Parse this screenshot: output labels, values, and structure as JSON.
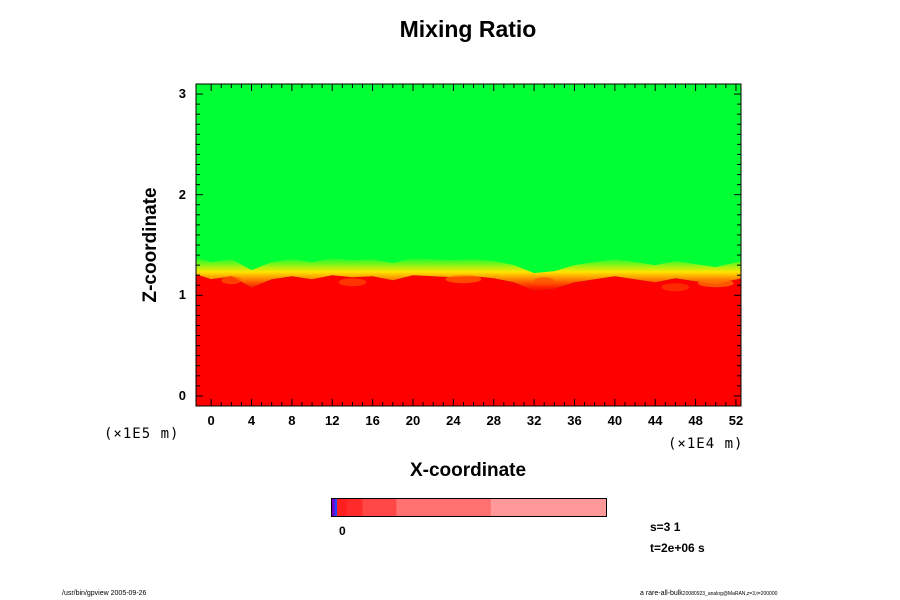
{
  "chart_data": {
    "type": "heatmap",
    "title": "Mixing Ratio",
    "xlabel": "X-coordinate",
    "ylabel": "Z-coordinate",
    "x_unit": "(×1E4 m)",
    "y_unit": "(×1E5 m)",
    "xlim": [
      -1.5,
      52.5
    ],
    "ylim": [
      -0.1,
      3.1
    ],
    "x_ticks": [
      0,
      4,
      8,
      12,
      16,
      20,
      24,
      28,
      32,
      36,
      40,
      44,
      48,
      52
    ],
    "y_ticks": [
      0,
      1,
      2,
      3
    ],
    "x_tick_labels": [
      "0",
      "4",
      "8",
      "12",
      "16",
      "20",
      "24",
      "28",
      "32",
      "36",
      "40",
      "44",
      "48",
      "52"
    ],
    "y_tick_labels": [
      "0",
      "1",
      "2",
      "3"
    ],
    "regions": [
      {
        "fill": "upper",
        "color": "#00ff33",
        "above_z": 1.35
      },
      {
        "fill": "lower",
        "color": "#ff0000",
        "below_z": 1.15
      }
    ],
    "interface_z": [
      [
        -1.5,
        1.38
      ],
      [
        0,
        1.33
      ],
      [
        2,
        1.36
      ],
      [
        4,
        1.25
      ],
      [
        6,
        1.33
      ],
      [
        8,
        1.36
      ],
      [
        10,
        1.33
      ],
      [
        12,
        1.37
      ],
      [
        14,
        1.35
      ],
      [
        16,
        1.36
      ],
      [
        18,
        1.32
      ],
      [
        20,
        1.37
      ],
      [
        22,
        1.36
      ],
      [
        24,
        1.35
      ],
      [
        26,
        1.36
      ],
      [
        28,
        1.34
      ],
      [
        30,
        1.3
      ],
      [
        32,
        1.22
      ],
      [
        34,
        1.24
      ],
      [
        36,
        1.3
      ],
      [
        38,
        1.33
      ],
      [
        40,
        1.36
      ],
      [
        42,
        1.33
      ],
      [
        44,
        1.3
      ],
      [
        46,
        1.34
      ],
      [
        48,
        1.31
      ],
      [
        50,
        1.28
      ],
      [
        52.5,
        1.34
      ]
    ],
    "colorbar": {
      "label": "0",
      "segments": [
        "#7a00c8",
        "#2244ff",
        "#ff1f1f",
        "#ff2a2a",
        "#ff4747",
        "#ff7070",
        "#ff9999"
      ],
      "weights": [
        3,
        2,
        8,
        13,
        28,
        78,
        96
      ]
    }
  },
  "info": {
    "s": "s=3 1",
    "t": "t=2e+06 s"
  },
  "footer": {
    "left": "/usr/bin/gpview 2005-09-26",
    "right_main": "a rare-all-bulk",
    "right_small": "20080923_analog@MaRAN,z=3,t=200000"
  }
}
